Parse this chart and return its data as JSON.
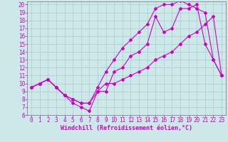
{
  "xlabel": "Windchill (Refroidissement éolien,°C)",
  "bg_color": "#cce8e8",
  "line_color": "#cc00cc",
  "grid_color": "#aacccc",
  "spine_color": "#886688",
  "xlim": [
    -0.5,
    23.5
  ],
  "ylim": [
    6,
    20.4
  ],
  "xticks": [
    0,
    1,
    2,
    3,
    4,
    5,
    6,
    7,
    8,
    9,
    10,
    11,
    12,
    13,
    14,
    15,
    16,
    17,
    18,
    19,
    20,
    21,
    22,
    23
  ],
  "yticks": [
    6,
    7,
    8,
    9,
    10,
    11,
    12,
    13,
    14,
    15,
    16,
    17,
    18,
    19,
    20
  ],
  "line1_x": [
    0,
    1,
    2,
    3,
    4,
    5,
    6,
    7,
    8,
    9,
    10,
    11,
    12,
    13,
    14,
    15,
    16,
    17,
    18,
    19,
    20,
    21,
    22,
    23
  ],
  "line1_y": [
    9.5,
    10.0,
    10.5,
    9.5,
    8.5,
    7.5,
    7.0,
    6.5,
    9.0,
    9.0,
    11.5,
    12.0,
    13.5,
    14.0,
    15.0,
    18.5,
    16.5,
    17.0,
    19.5,
    19.5,
    20.0,
    15.0,
    13.0,
    11.0
  ],
  "line2_x": [
    0,
    1,
    2,
    3,
    4,
    5,
    6,
    7,
    8,
    9,
    10,
    11,
    12,
    13,
    14,
    15,
    16,
    17,
    18,
    19,
    20,
    21,
    22,
    23
  ],
  "line2_y": [
    9.5,
    10.0,
    10.5,
    9.5,
    8.5,
    8.0,
    7.5,
    7.5,
    9.5,
    11.5,
    13.0,
    14.5,
    15.5,
    16.5,
    17.5,
    19.5,
    20.0,
    20.0,
    20.5,
    20.0,
    19.5,
    19.0,
    13.0,
    11.0
  ],
  "line3_x": [
    0,
    1,
    2,
    3,
    4,
    5,
    6,
    7,
    8,
    9,
    10,
    11,
    12,
    13,
    14,
    15,
    16,
    17,
    18,
    19,
    20,
    21,
    22,
    23
  ],
  "line3_y": [
    9.5,
    10.0,
    10.5,
    9.5,
    8.5,
    8.0,
    7.5,
    7.5,
    9.0,
    10.0,
    10.0,
    10.5,
    11.0,
    11.5,
    12.0,
    13.0,
    13.5,
    14.0,
    15.0,
    16.0,
    16.5,
    17.5,
    18.5,
    11.0
  ],
  "tick_fontsize": 5.5,
  "xlabel_fontsize": 6.0,
  "marker_size": 2.0,
  "line_width": 0.8
}
